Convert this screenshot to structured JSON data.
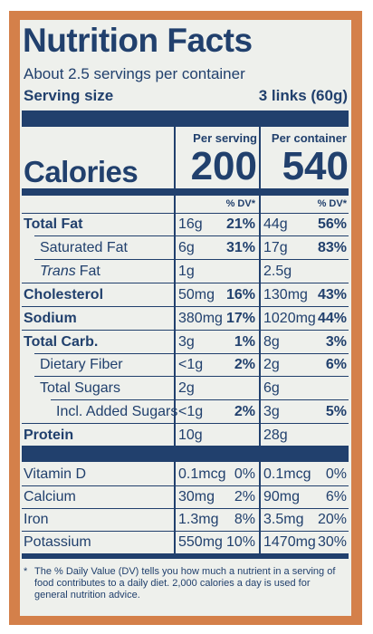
{
  "header": {
    "title": "Nutrition Facts",
    "servings": "About 2.5 servings per container",
    "serving_size_label": "Serving size",
    "serving_size_value": "3 links (60g)"
  },
  "columns": [
    "Per serving",
    "Per container"
  ],
  "calories": {
    "label": "Calories",
    "values": [
      "200",
      "540"
    ]
  },
  "dv_header": [
    "% DV*",
    "% DV*"
  ],
  "nutrients": [
    {
      "name": "Total Fat",
      "serving": "16g",
      "serving_dv": "21%",
      "container": "44g",
      "container_dv": "56%"
    },
    {
      "name": "Saturated Fat",
      "serving": "6g",
      "serving_dv": "31%",
      "container": "17g",
      "container_dv": "83%"
    },
    {
      "name_italic": "Trans",
      "name": "Fat",
      "serving": "1g",
      "container": "2.5g"
    },
    {
      "name": "Cholesterol",
      "serving": "50mg",
      "serving_dv": "16%",
      "container": "130mg",
      "container_dv": "43%"
    },
    {
      "name": "Sodium",
      "serving": "380mg",
      "serving_dv": "17%",
      "container": "1020mg",
      "container_dv": "44%"
    },
    {
      "name": "Total Carb.",
      "serving": "3g",
      "serving_dv": "1%",
      "container": "8g",
      "container_dv": "3%"
    },
    {
      "name": "Dietary Fiber",
      "serving": "<1g",
      "serving_dv": "2%",
      "container": "2g",
      "container_dv": "6%"
    },
    {
      "name": "Total Sugars",
      "serving": "2g",
      "container": "6g"
    },
    {
      "name": "Incl. Added Sugars",
      "serving": "<1g",
      "serving_dv": "2%",
      "container": "3g",
      "container_dv": "5%"
    },
    {
      "name": "Protein",
      "serving": "10g",
      "container": "28g"
    }
  ],
  "vitamins": [
    {
      "name": "Vitamin D",
      "serving": "0.1mcg",
      "serving_dv": "0%",
      "container": "0.1mcg",
      "container_dv": "0%"
    },
    {
      "name": "Calcium",
      "serving": "30mg",
      "serving_dv": "2%",
      "container": "90mg",
      "container_dv": "6%"
    },
    {
      "name": "Iron",
      "serving": "1.3mg",
      "serving_dv": "8%",
      "container": "3.5mg",
      "container_dv": "20%"
    },
    {
      "name": "Potassium",
      "serving": "550mg",
      "serving_dv": "10%",
      "container": "1470mg",
      "container_dv": "30%"
    }
  ],
  "footnote": {
    "marker": "*",
    "text": "The % Daily Value (DV) tells you how much a nutrient in a serving of food contributes to a daily diet. 2,000 calories a day is used for general nutrition advice."
  }
}
